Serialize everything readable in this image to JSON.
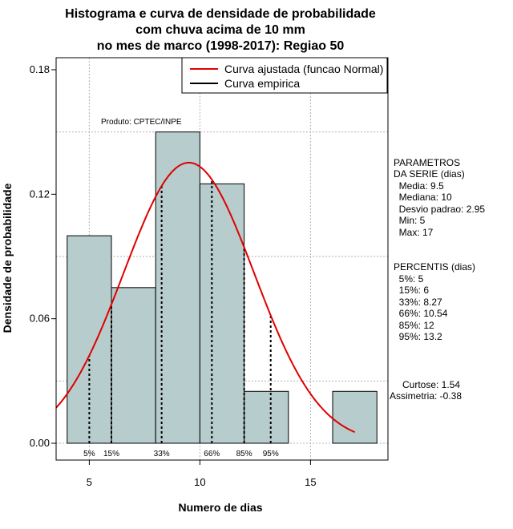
{
  "chart_data": {
    "type": "bar",
    "title_lines": [
      "Histograma e curva de densidade de probabilidade",
      "com chuva acima de 10 mm",
      "no mes de marco (1998-2017): Regiao 50"
    ],
    "xlabel": "Numero de dias",
    "ylabel": "Densidade de probabilidade",
    "xlim": [
      3.5,
      18.5
    ],
    "ylim": [
      0,
      0.18
    ],
    "x_ticks": [
      5,
      10,
      15
    ],
    "y_ticks": [
      0.0,
      0.06,
      0.12,
      0.18
    ],
    "y_tick_labels": [
      "0.00",
      "0.06",
      "0.12",
      "0.18"
    ],
    "grid": true,
    "bins": [
      {
        "x0": 4,
        "x1": 6,
        "density": 0.1
      },
      {
        "x0": 6,
        "x1": 8,
        "density": 0.075
      },
      {
        "x0": 8,
        "x1": 10,
        "density": 0.15
      },
      {
        "x0": 10,
        "x1": 12,
        "density": 0.125
      },
      {
        "x0": 12,
        "x1": 14,
        "density": 0.025
      },
      {
        "x0": 14,
        "x1": 16,
        "density": 0
      },
      {
        "x0": 16,
        "x1": 18,
        "density": 0.025
      }
    ],
    "bar_color": "#b7cccc",
    "normal_fit": {
      "mean": 9.5,
      "sd": 2.95,
      "x_from": 3.5,
      "x_to": 17,
      "color": "#e00000"
    },
    "percentile_lines": [
      {
        "label": "5%",
        "x": 5
      },
      {
        "label": "15%",
        "x": 6
      },
      {
        "label": "33%",
        "x": 8.27
      },
      {
        "label": "66%",
        "x": 10.54
      },
      {
        "label": "85%",
        "x": 12
      },
      {
        "label": "95%",
        "x": 13.2
      }
    ],
    "legend": [
      {
        "label": "Curva ajustada (funcao Normal)",
        "color": "#e00000"
      },
      {
        "label": "Curva empirica",
        "color": "#000000"
      }
    ],
    "produto": "Produto: CPTEC/INPE",
    "parametros_lines": [
      "PARAMETROS",
      "DA SERIE (dias)",
      "  Media: 9.5",
      "  Mediana: 10",
      "  Desvio padrao: 2.95",
      "  Min: 5",
      "  Max: 17"
    ],
    "percentis_lines": [
      "PERCENTIS (dias)",
      "  5%: 5",
      "  15%: 6",
      "  33%: 8.27",
      "  66%: 10.54",
      "  85%: 12",
      "  95%: 13.2"
    ],
    "stats_lines": [
      "Curtose: 1.54",
      "Assimetria: -0.38"
    ]
  }
}
